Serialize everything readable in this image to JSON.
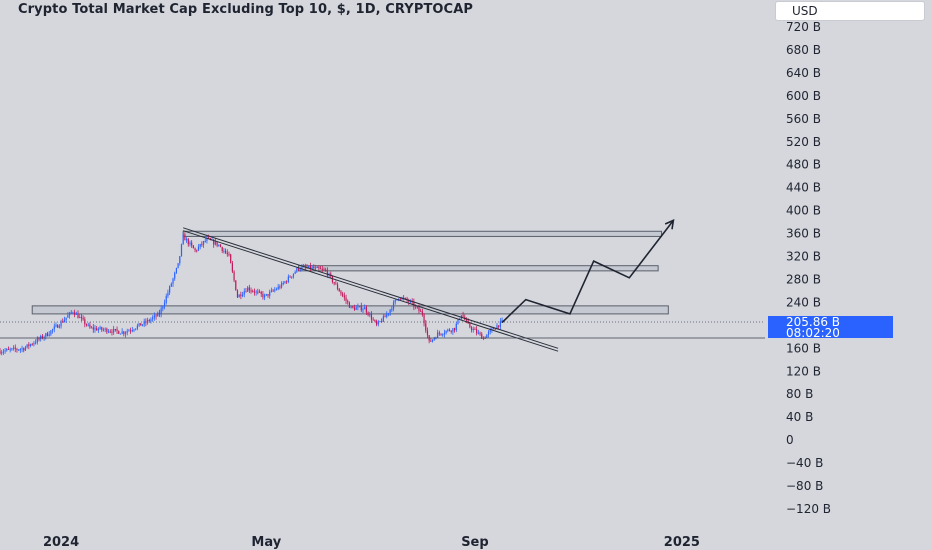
{
  "chart_data": {
    "type": "candlestick",
    "title": "Crypto Total Market Cap Excluding Top 10, $, 1D, CRYPTOCAP",
    "currency_button": "USD",
    "colors": {
      "up": "#2962ff",
      "down": "#c2185b",
      "background": "#d5d7dd",
      "badge": "#2962ff",
      "text": "#1f2430"
    },
    "y_axis": {
      "unit": "B",
      "ylim": [
        -140,
        740
      ],
      "tick_labels": [
        "720 B",
        "680 B",
        "640 B",
        "600 B",
        "560 B",
        "520 B",
        "480 B",
        "440 B",
        "400 B",
        "360 B",
        "320 B",
        "280 B",
        "240 B",
        "200 B",
        "160 B",
        "120 B",
        "80 B",
        "40 B",
        "0",
        "−40 B",
        "−80 B",
        "−120 B"
      ],
      "tick_values": [
        720,
        680,
        640,
        600,
        560,
        520,
        480,
        440,
        400,
        360,
        320,
        280,
        240,
        200,
        160,
        120,
        80,
        40,
        0,
        -40,
        -80,
        -120
      ]
    },
    "x_axis": {
      "tick_labels": [
        "2024",
        "May",
        "Sep",
        "2025"
      ],
      "tick_dates": [
        "2024-01-01",
        "2024-05-01",
        "2024-09-01",
        "2025-01-01"
      ],
      "xlim": [
        "2023-11-26",
        "2025-02-19"
      ]
    },
    "last_price": {
      "value_label": "205.86 B",
      "countdown": "08:02:20",
      "value": 205.86
    },
    "price_anchors": [
      {
        "date": "2023-11-26",
        "value": 155
      },
      {
        "date": "2023-12-10",
        "value": 160
      },
      {
        "date": "2023-12-24",
        "value": 185
      },
      {
        "date": "2024-01-01",
        "value": 205
      },
      {
        "date": "2024-01-08",
        "value": 225
      },
      {
        "date": "2024-01-18",
        "value": 195
      },
      {
        "date": "2024-01-28",
        "value": 192
      },
      {
        "date": "2024-02-07",
        "value": 188
      },
      {
        "date": "2024-02-20",
        "value": 205
      },
      {
        "date": "2024-02-28",
        "value": 220
      },
      {
        "date": "2024-03-05",
        "value": 265
      },
      {
        "date": "2024-03-10",
        "value": 305
      },
      {
        "date": "2024-03-13",
        "value": 355
      },
      {
        "date": "2024-03-20",
        "value": 330
      },
      {
        "date": "2024-03-27",
        "value": 350
      },
      {
        "date": "2024-04-03",
        "value": 340
      },
      {
        "date": "2024-04-09",
        "value": 320
      },
      {
        "date": "2024-04-14",
        "value": 250
      },
      {
        "date": "2024-04-20",
        "value": 265
      },
      {
        "date": "2024-04-30",
        "value": 250
      },
      {
        "date": "2024-05-10",
        "value": 270
      },
      {
        "date": "2024-05-20",
        "value": 300
      },
      {
        "date": "2024-05-28",
        "value": 300
      },
      {
        "date": "2024-06-05",
        "value": 295
      },
      {
        "date": "2024-06-12",
        "value": 265
      },
      {
        "date": "2024-06-20",
        "value": 230
      },
      {
        "date": "2024-06-28",
        "value": 230
      },
      {
        "date": "2024-07-05",
        "value": 200
      },
      {
        "date": "2024-07-10",
        "value": 215
      },
      {
        "date": "2024-07-18",
        "value": 250
      },
      {
        "date": "2024-07-25",
        "value": 240
      },
      {
        "date": "2024-08-01",
        "value": 220
      },
      {
        "date": "2024-08-05",
        "value": 170
      },
      {
        "date": "2024-08-10",
        "value": 185
      },
      {
        "date": "2024-08-20",
        "value": 195
      },
      {
        "date": "2024-08-24",
        "value": 220
      },
      {
        "date": "2024-08-28",
        "value": 200
      },
      {
        "date": "2024-09-06",
        "value": 178
      },
      {
        "date": "2024-09-12",
        "value": 195
      },
      {
        "date": "2024-09-17",
        "value": 205.86
      }
    ],
    "drawings": {
      "trendline_upper": [
        {
          "date": "2024-03-13",
          "value": 370
        },
        {
          "date": "2024-10-20",
          "value": 160
        }
      ],
      "trendline_lower": [
        {
          "date": "2024-03-13",
          "value": 365
        },
        {
          "date": "2024-10-20",
          "value": 155
        }
      ],
      "zones": [
        {
          "from": "2024-03-13",
          "to": "2024-12-20",
          "low": 355,
          "high": 364
        },
        {
          "from": "2024-05-20",
          "to": "2024-12-18",
          "low": 295,
          "high": 304
        },
        {
          "from": "2023-12-15",
          "to": "2024-12-24",
          "low": 220,
          "high": 234
        }
      ],
      "support_line": {
        "value": 178
      },
      "projection_path": [
        {
          "date": "2024-09-17",
          "value": 205
        },
        {
          "date": "2024-10-01",
          "value": 245
        },
        {
          "date": "2024-10-27",
          "value": 220
        },
        {
          "date": "2024-11-10",
          "value": 312
        },
        {
          "date": "2024-12-01",
          "value": 283
        },
        {
          "date": "2024-12-27",
          "value": 383
        }
      ]
    }
  }
}
